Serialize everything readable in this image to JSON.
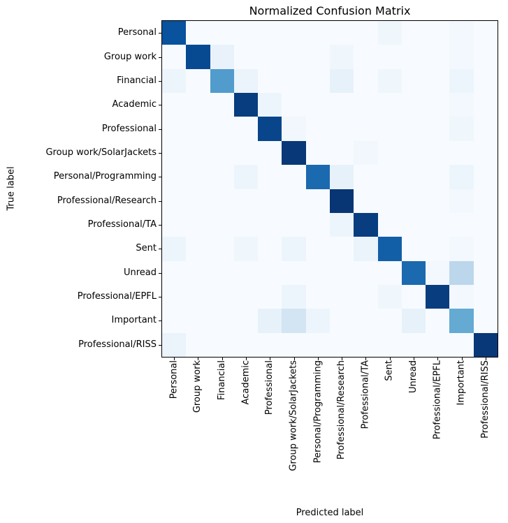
{
  "chart_data": {
    "type": "heatmap",
    "title": "Normalized Confusion Matrix",
    "xlabel": "Predicted label",
    "ylabel": "True label",
    "colormap": "Blues",
    "vmin": 0,
    "vmax": 1,
    "categories": [
      "Personal",
      "Group work",
      "Financial",
      "Academic",
      "Professional",
      "Group work/SolarJackets",
      "Personal/Programming",
      "Professional/Research",
      "Professional/TA",
      "Sent",
      "Unread",
      "Professional/EPFL",
      "Important",
      "Professional/RISS"
    ],
    "matrix": [
      [
        0.87,
        0,
        0,
        0,
        0,
        0,
        0,
        0,
        0,
        0.04,
        0,
        0,
        0.02,
        0
      ],
      [
        0,
        0.9,
        0.07,
        0,
        0,
        0,
        0,
        0.04,
        0,
        0,
        0,
        0,
        0.02,
        0
      ],
      [
        0.05,
        0,
        0.58,
        0.06,
        0,
        0,
        0,
        0.08,
        0,
        0.04,
        0,
        0,
        0.05,
        0
      ],
      [
        0,
        0,
        0,
        0.95,
        0.05,
        0,
        0,
        0,
        0,
        0,
        0,
        0,
        0.02,
        0
      ],
      [
        0,
        0,
        0,
        0,
        0.92,
        0.03,
        0,
        0,
        0,
        0,
        0,
        0,
        0.04,
        0
      ],
      [
        0,
        0,
        0,
        0,
        0,
        0.97,
        0,
        0,
        0.03,
        0,
        0,
        0,
        0,
        0
      ],
      [
        0,
        0,
        0,
        0.05,
        0,
        0,
        0.78,
        0.08,
        0,
        0,
        0,
        0,
        0.05,
        0
      ],
      [
        0,
        0,
        0,
        0,
        0,
        0,
        0,
        0.98,
        0,
        0,
        0,
        0,
        0.02,
        0
      ],
      [
        0,
        0,
        0,
        0,
        0,
        0,
        0,
        0.05,
        0.95,
        0,
        0,
        0,
        0,
        0
      ],
      [
        0.05,
        0,
        0,
        0.04,
        0,
        0.05,
        0,
        0,
        0.06,
        0.82,
        0,
        0,
        0.02,
        0
      ],
      [
        0,
        0,
        0,
        0,
        0,
        0,
        0,
        0,
        0,
        0,
        0.78,
        0.02,
        0.28,
        0
      ],
      [
        0,
        0,
        0,
        0,
        0,
        0.05,
        0,
        0,
        0,
        0.04,
        0,
        0.95,
        0.02,
        0
      ],
      [
        0,
        0,
        0,
        0,
        0.08,
        0.18,
        0.05,
        0,
        0,
        0,
        0.08,
        0,
        0.52,
        0
      ],
      [
        0.06,
        0,
        0,
        0,
        0,
        0,
        0,
        0,
        0,
        0,
        0,
        0,
        0,
        0.97
      ]
    ]
  }
}
